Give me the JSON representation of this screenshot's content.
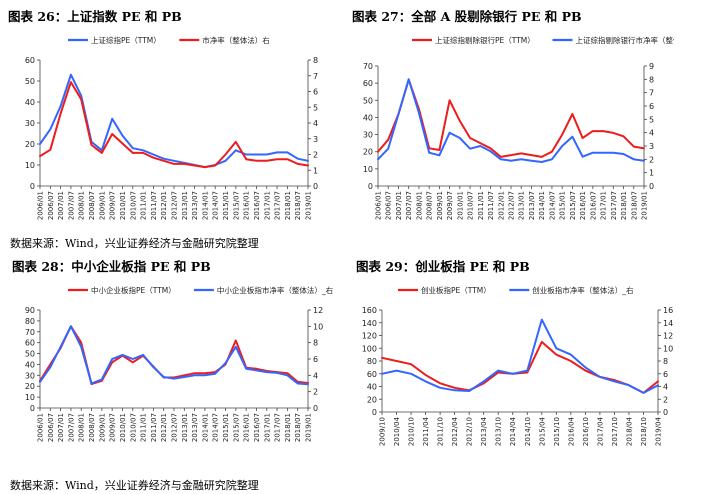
{
  "titles": {
    "fig26": "图表 26：上证指数 PE 和 PB",
    "fig27": "图表 27：全部 A 股剔除银行 PE 和 PB",
    "fig28": "图表 28：中小企业板指 PE 和 PB",
    "fig29": "图表 29：创业板指 PE 和 PB"
  },
  "sources": {
    "top": "数据来源：Wind，兴业证券经济与金融研究院整理",
    "bottom": "数据来源：Wind，兴业证券经济与金融研究院整理"
  },
  "colors": {
    "blue": "#3366ff",
    "red": "#ee1c1c"
  },
  "chart_data": [
    {
      "type": "line",
      "x": [
        "2006/01",
        "2006/07",
        "2007/01",
        "2007/07",
        "2008/01",
        "2008/07",
        "2009/01",
        "2009/07",
        "2010/01",
        "2010/07",
        "2011/01",
        "2011/07",
        "2012/01",
        "2012/07",
        "2013/01",
        "2013/07",
        "2014/01",
        "2014/07",
        "2015/01",
        "2015/07",
        "2016/01",
        "2016/07",
        "2017/01",
        "2017/07",
        "2018/01",
        "2018/07",
        "2019/01"
      ],
      "ylim": [
        0,
        60
      ],
      "yticks": [
        0,
        10,
        20,
        30,
        40,
        50,
        60
      ],
      "y2lim": [
        0,
        8
      ],
      "y2ticks": [
        0,
        1,
        2,
        3,
        4,
        5,
        6,
        7,
        8
      ],
      "series": [
        {
          "name": "上证综指PE（TTM）",
          "axis": "left",
          "color": "#3366ff",
          "values": [
            20,
            27,
            38,
            53,
            43,
            21,
            17,
            32,
            24,
            18,
            17,
            15,
            13,
            12,
            11,
            10,
            9,
            10,
            12,
            17,
            15,
            15,
            15,
            16,
            16,
            13,
            12
          ]
        },
        {
          "name": "市净率（整体法）右",
          "axis": "right",
          "color": "#ee1c1c",
          "values": [
            1.9,
            2.3,
            4.6,
            6.6,
            5.5,
            2.6,
            2.1,
            3.3,
            2.7,
            2.1,
            2.1,
            1.8,
            1.6,
            1.4,
            1.4,
            1.3,
            1.2,
            1.3,
            2.0,
            2.8,
            1.7,
            1.6,
            1.6,
            1.7,
            1.7,
            1.4,
            1.3
          ]
        }
      ]
    },
    {
      "type": "line",
      "x": [
        "2006/01",
        "2006/07",
        "2007/01",
        "2007/07",
        "2008/01",
        "2008/07",
        "2009/01",
        "2009/07",
        "2010/01",
        "2010/07",
        "2011/01",
        "2011/07",
        "2012/01",
        "2012/07",
        "2013/01",
        "2013/07",
        "2014/01",
        "2014/07",
        "2015/01",
        "2015/07",
        "2016/01",
        "2016/07",
        "2017/01",
        "2017/07",
        "2018/01",
        "2018/07",
        "2019/01"
      ],
      "ylim": [
        0,
        70
      ],
      "yticks": [
        0,
        10,
        20,
        30,
        40,
        50,
        60,
        70
      ],
      "y2lim": [
        0,
        9
      ],
      "y2ticks": [
        0,
        1,
        2,
        3,
        4,
        5,
        6,
        7,
        8,
        9
      ],
      "series": [
        {
          "name": "上证综指剔除银行PE（TTM）",
          "axis": "left",
          "color": "#ee1c1c",
          "values": [
            20,
            27,
            42,
            62,
            45,
            22,
            21,
            50,
            38,
            28,
            25,
            22,
            17,
            18,
            19,
            18,
            17,
            20,
            30,
            42,
            28,
            32,
            32,
            31,
            29,
            23,
            22
          ]
        },
        {
          "name": "上证综指剔除银行市净率（整体法）_右",
          "axis": "right",
          "color": "#3366ff",
          "values": [
            2.0,
            2.8,
            5.4,
            8.0,
            5.5,
            2.5,
            2.3,
            4.0,
            3.6,
            2.8,
            3.0,
            2.6,
            2.0,
            1.9,
            2.0,
            1.9,
            1.8,
            2.0,
            3.0,
            3.7,
            2.2,
            2.5,
            2.5,
            2.5,
            2.4,
            2.0,
            1.9
          ]
        }
      ]
    },
    {
      "type": "line",
      "x": [
        "2006/01",
        "2006/07",
        "2007/01",
        "2007/07",
        "2008/01",
        "2008/07",
        "2009/01",
        "2009/07",
        "2010/01",
        "2010/07",
        "2011/01",
        "2011/07",
        "2012/01",
        "2012/07",
        "2013/01",
        "2013/07",
        "2014/01",
        "2014/07",
        "2015/01",
        "2015/07",
        "2016/01",
        "2016/07",
        "2017/01",
        "2017/07",
        "2018/01",
        "2018/07",
        "2019/01"
      ],
      "ylim": [
        0,
        90
      ],
      "yticks": [
        0,
        10,
        20,
        30,
        40,
        50,
        60,
        70,
        80,
        90
      ],
      "y2lim": [
        0,
        12
      ],
      "y2ticks": [
        0,
        2,
        4,
        6,
        8,
        10,
        12
      ],
      "series": [
        {
          "name": "中小企业板指PE（TTM）",
          "axis": "left",
          "color": "#ee1c1c",
          "values": [
            25,
            40,
            55,
            75,
            60,
            22,
            25,
            42,
            48,
            42,
            48,
            38,
            28,
            28,
            30,
            32,
            32,
            33,
            40,
            62,
            37,
            36,
            34,
            33,
            32,
            24,
            23
          ]
        },
        {
          "name": "中小企业板指市净率（整体法）_右",
          "axis": "right",
          "color": "#3366ff",
          "values": [
            3.2,
            5.0,
            7.5,
            10.0,
            7.5,
            3.0,
            3.5,
            6.0,
            6.5,
            6.0,
            6.5,
            5.0,
            3.8,
            3.6,
            3.8,
            4.0,
            4.0,
            4.2,
            5.5,
            7.5,
            4.8,
            4.6,
            4.4,
            4.3,
            4.0,
            3.0,
            2.9
          ]
        }
      ]
    },
    {
      "type": "line",
      "x": [
        "2009/10",
        "2010/04",
        "2010/10",
        "2011/04",
        "2011/10",
        "2012/04",
        "2012/10",
        "2013/04",
        "2013/10",
        "2014/04",
        "2014/10",
        "2015/04",
        "2015/10",
        "2016/04",
        "2016/10",
        "2017/04",
        "2017/10",
        "2018/04",
        "2018/10",
        "2019/04"
      ],
      "ylim": [
        0,
        160
      ],
      "yticks": [
        0,
        20,
        40,
        60,
        80,
        100,
        120,
        140,
        160
      ],
      "y2lim": [
        0,
        16
      ],
      "y2ticks": [
        0,
        2,
        4,
        6,
        8,
        10,
        12,
        14,
        16
      ],
      "series": [
        {
          "name": "创业板指PE（TTM）",
          "axis": "left",
          "color": "#ee1c1c",
          "values": [
            85,
            80,
            75,
            58,
            45,
            38,
            34,
            45,
            62,
            60,
            62,
            110,
            90,
            80,
            65,
            55,
            50,
            42,
            30,
            48
          ]
        },
        {
          "name": "创业板指市净率（整体法）_右",
          "axis": "right",
          "color": "#3366ff",
          "values": [
            6.0,
            6.5,
            6.0,
            4.8,
            3.8,
            3.4,
            3.3,
            4.8,
            6.5,
            6.0,
            6.5,
            14.5,
            10.0,
            9.0,
            7.0,
            5.5,
            4.8,
            4.2,
            3.0,
            4.2
          ]
        }
      ]
    }
  ]
}
